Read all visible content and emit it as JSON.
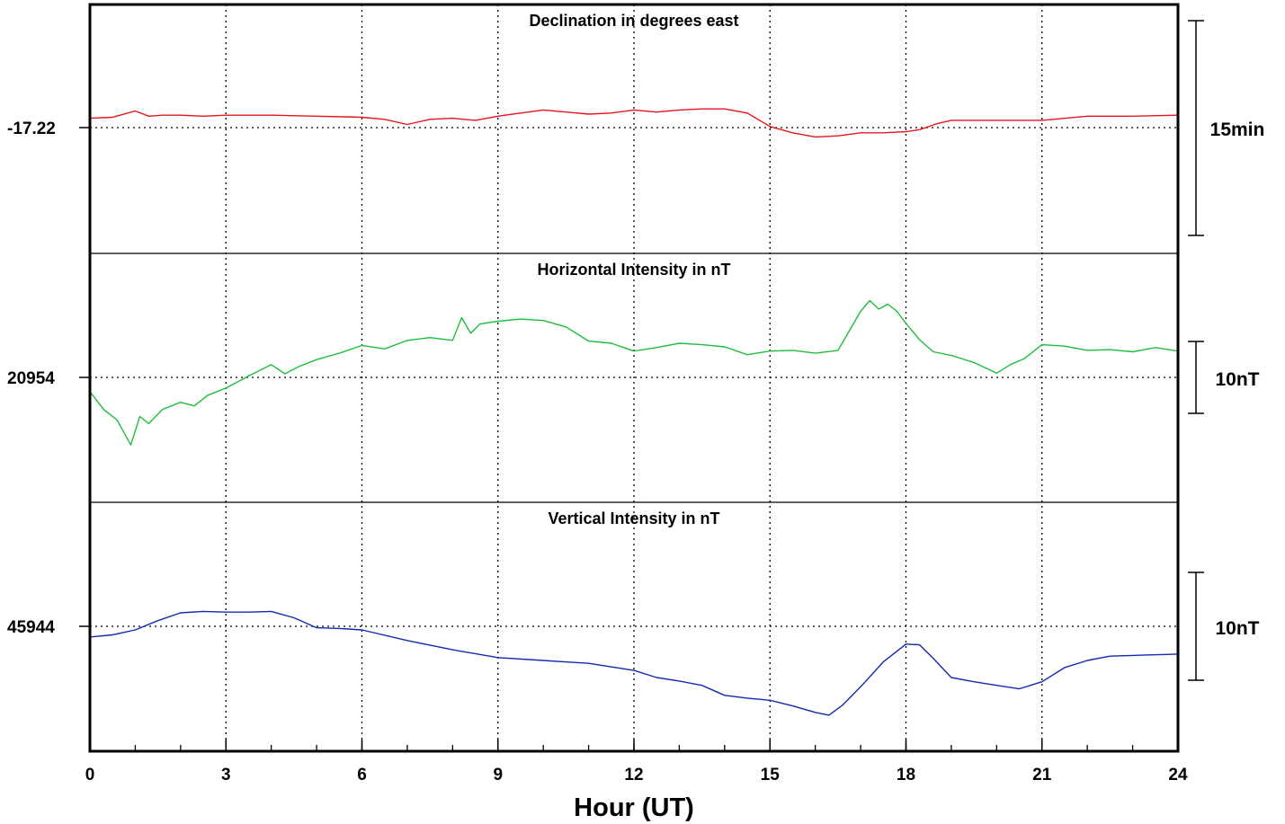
{
  "chart_data": {
    "type": "line",
    "xlabel": "Hour (UT)",
    "x_range": [
      0,
      24
    ],
    "x_ticks": [
      "0",
      "3",
      "6",
      "9",
      "12",
      "15",
      "18",
      "21",
      "24"
    ],
    "x_minor_step": 1,
    "grid": true,
    "panels": [
      {
        "title": "Declination in degrees east",
        "baseline_label": "-17.22",
        "scale_label": "15min",
        "color": "#e8141c",
        "y_range": [
          -0.12,
          0.12
        ],
        "x": [
          0,
          0.5,
          1.0,
          1.3,
          1.6,
          2.0,
          2.5,
          3.0,
          4.0,
          5.0,
          6.0,
          6.5,
          7.0,
          7.5,
          8.0,
          8.5,
          9.0,
          9.5,
          10.0,
          10.5,
          11.0,
          11.5,
          12.0,
          12.5,
          13.0,
          13.5,
          14.0,
          14.5,
          15.0,
          15.5,
          16.0,
          16.5,
          17.0,
          17.5,
          18.0,
          18.3,
          18.7,
          19.0,
          20.0,
          21.0,
          22.0,
          23.0,
          24.0
        ],
        "y": [
          0.009,
          0.01,
          0.016,
          0.011,
          0.012,
          0.012,
          0.011,
          0.012,
          0.012,
          0.011,
          0.01,
          0.008,
          0.003,
          0.008,
          0.009,
          0.007,
          0.011,
          0.014,
          0.017,
          0.015,
          0.013,
          0.014,
          0.017,
          0.015,
          0.017,
          0.018,
          0.018,
          0.014,
          0.001,
          -0.005,
          -0.009,
          -0.008,
          -0.005,
          -0.005,
          -0.004,
          -0.002,
          0.004,
          0.007,
          0.007,
          0.007,
          0.011,
          0.011,
          0.012
        ]
      },
      {
        "title": "Horizontal Intensity in nT",
        "baseline_label": "20954",
        "scale_label": "10nT",
        "color": "#1ebe3c",
        "y_range": [
          -17.5,
          17.5
        ],
        "x": [
          0,
          0.3,
          0.6,
          0.9,
          1.1,
          1.3,
          1.6,
          2.0,
          2.3,
          2.6,
          3.0,
          3.5,
          4.0,
          4.3,
          4.6,
          5.0,
          5.5,
          6.0,
          6.5,
          7.0,
          7.5,
          8.0,
          8.2,
          8.4,
          8.6,
          9.0,
          9.5,
          10.0,
          10.5,
          11.0,
          11.5,
          12.0,
          12.5,
          13.0,
          13.5,
          14.0,
          14.5,
          15.0,
          15.5,
          16.0,
          16.5,
          17.0,
          17.2,
          17.4,
          17.6,
          17.8,
          18.0,
          18.3,
          18.6,
          19.0,
          19.5,
          20.0,
          20.3,
          20.6,
          21.0,
          21.5,
          22.0,
          22.5,
          23.0,
          23.5,
          24.0
        ],
        "y": [
          -2,
          -4.5,
          -6,
          -9.5,
          -5.5,
          -6.5,
          -4.5,
          -3.5,
          -4,
          -2.5,
          -1.5,
          0.2,
          1.8,
          0.5,
          1.5,
          2.5,
          3.4,
          4.5,
          4.0,
          5.2,
          5.6,
          5.2,
          8.4,
          6.2,
          7.5,
          7.9,
          8.2,
          8.0,
          7.1,
          5.1,
          4.8,
          3.7,
          4.2,
          4.8,
          4.6,
          4.3,
          3.2,
          3.7,
          3.8,
          3.4,
          3.8,
          9.3,
          10.8,
          9.6,
          10.3,
          9.3,
          7.6,
          5.3,
          3.6,
          3.1,
          2.1,
          0.6,
          1.8,
          2.6,
          4.6,
          4.4,
          3.8,
          3.9,
          3.6,
          4.2,
          3.7
        ]
      },
      {
        "title": "Vertical Intensity in nT",
        "baseline_label": "45944",
        "scale_label": "10nT",
        "color": "#1428b4",
        "y_range": [
          -17.5,
          17.5
        ],
        "x": [
          0,
          0.5,
          1.0,
          1.5,
          2.0,
          2.5,
          3.0,
          3.5,
          4.0,
          4.5,
          5.0,
          5.5,
          6.0,
          7.0,
          8.0,
          9.0,
          10.0,
          11.0,
          12.0,
          12.5,
          13.0,
          13.5,
          14.0,
          14.5,
          15.0,
          15.5,
          16.0,
          16.3,
          16.6,
          17.0,
          17.5,
          18.0,
          18.3,
          18.6,
          19.0,
          19.5,
          20.0,
          20.5,
          21.0,
          21.5,
          22.0,
          22.5,
          23.0,
          24.0
        ],
        "y": [
          -1.5,
          -1.2,
          -0.5,
          0.8,
          1.9,
          2.1,
          2.0,
          2.0,
          2.1,
          1.2,
          -0.2,
          -0.3,
          -0.5,
          -2.0,
          -3.3,
          -4.4,
          -4.8,
          -5.2,
          -6.2,
          -7.2,
          -7.7,
          -8.3,
          -9.7,
          -10.1,
          -10.4,
          -11.2,
          -12.1,
          -12.5,
          -11.1,
          -8.5,
          -5.0,
          -2.5,
          -2.6,
          -4.5,
          -7.2,
          -7.8,
          -8.3,
          -8.8,
          -7.8,
          -5.8,
          -4.8,
          -4.2,
          -4.1,
          -3.9
        ]
      }
    ]
  }
}
